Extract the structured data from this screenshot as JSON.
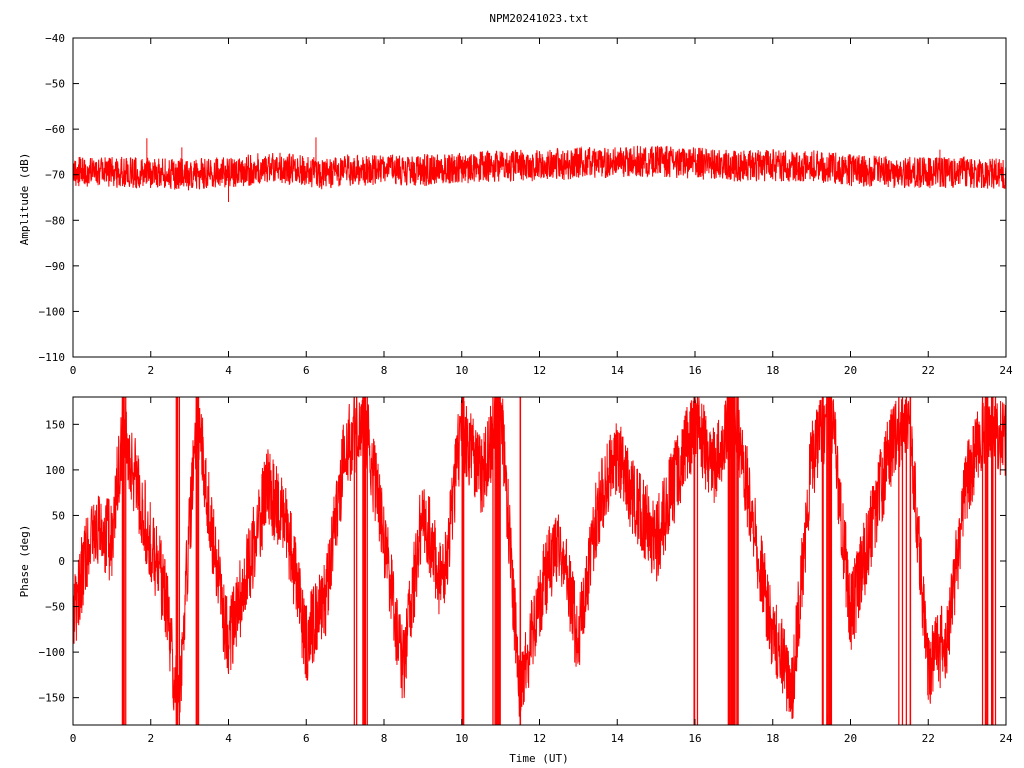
{
  "window": {
    "title": "NPM20241023.txt"
  },
  "chart_data": [
    {
      "id": "amplitude",
      "type": "line",
      "title": "NPM20241023.txt",
      "xlabel": "",
      "ylabel": "Amplitude (dB)",
      "xlim": [
        0,
        24
      ],
      "ylim": [
        -110,
        -40
      ],
      "xticks": [
        0,
        2,
        4,
        6,
        8,
        10,
        12,
        14,
        16,
        18,
        20,
        22,
        24
      ],
      "xtick_labels": [
        "0",
        "2",
        "4",
        "6",
        "8",
        "10",
        "12",
        "14",
        "16",
        "18",
        "20",
        "22",
        "24"
      ],
      "yticks": [
        -40,
        -50,
        -60,
        -70,
        -80,
        -90,
        -100,
        -110
      ],
      "ytick_labels": [
        "−40",
        "−50",
        "−60",
        "−70",
        "−80",
        "−90",
        "−100",
        "−110"
      ],
      "grid": false,
      "series": [
        {
          "color": "#ff0000",
          "x": [
            0,
            1,
            2,
            3,
            4,
            5,
            6,
            6.5,
            7,
            8,
            9,
            10,
            11,
            12,
            13,
            14,
            15,
            16,
            17,
            18,
            19,
            20,
            21,
            22,
            23,
            24
          ],
          "values": [
            -69.5,
            -69.5,
            -69.5,
            -70,
            -69.5,
            -68.5,
            -69,
            -70,
            -69,
            -69,
            -69,
            -68.5,
            -68,
            -68,
            -67.5,
            -67,
            -67,
            -67.5,
            -68,
            -68,
            -68,
            -69,
            -69.5,
            -69.5,
            -69.5,
            -70
          ],
          "band_halfwidth_db": 3.5,
          "spikes": [
            [
              1.9,
              -62
            ],
            [
              6.25,
              -61.8
            ],
            [
              4.0,
              -76
            ],
            [
              2.8,
              -64
            ],
            [
              22.3,
              -64.5
            ]
          ]
        }
      ]
    },
    {
      "id": "phase",
      "type": "line",
      "xlabel": "Time (UT)",
      "ylabel": "Phase (deg)",
      "xlim": [
        0,
        24
      ],
      "ylim": [
        -180,
        180
      ],
      "xticks": [
        0,
        2,
        4,
        6,
        8,
        10,
        12,
        14,
        16,
        18,
        20,
        22,
        24
      ],
      "xtick_labels": [
        "0",
        "2",
        "4",
        "6",
        "8",
        "10",
        "12",
        "14",
        "16",
        "18",
        "20",
        "22",
        "24"
      ],
      "yticks": [
        150,
        100,
        50,
        0,
        -50,
        -100,
        -150
      ],
      "ytick_labels": [
        "150",
        "100",
        "50",
        "0",
        "−50",
        "−100",
        "−150"
      ],
      "grid": false,
      "wrapped": true,
      "series": [
        {
          "color": "#ff0000",
          "x": [
            0,
            0.5,
            1,
            1.3,
            1.5,
            2,
            2.4,
            2.7,
            3.2,
            3.6,
            4,
            4.5,
            5,
            5.5,
            6,
            6.5,
            7,
            7.5,
            8,
            8.5,
            9,
            9.5,
            10,
            10.5,
            11,
            11.5,
            12,
            12.5,
            13,
            13.5,
            14,
            14.5,
            15,
            15.5,
            16,
            16.5,
            17,
            17.5,
            18,
            18.5,
            19,
            19.5,
            20,
            20.5,
            21,
            21.5,
            22,
            22.5,
            23,
            23.5,
            24
          ],
          "values": [
            -60,
            40,
            20,
            160,
            110,
            20,
            -40,
            -170,
            170,
            20,
            -90,
            -10,
            80,
            40,
            -90,
            -40,
            120,
            160,
            20,
            -120,
            60,
            -30,
            150,
            90,
            170,
            -150,
            -40,
            30,
            -90,
            60,
            120,
            60,
            20,
            90,
            150,
            100,
            170,
            40,
            -80,
            -140,
            110,
            170,
            -60,
            30,
            120,
            170,
            -120,
            -80,
            90,
            160,
            130
          ],
          "noise_deg": 45
        }
      ]
    }
  ]
}
